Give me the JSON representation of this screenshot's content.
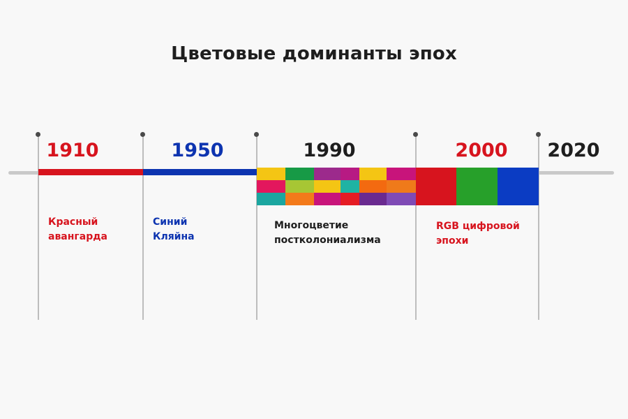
{
  "title": "Цветовые доминанты эпох",
  "colors": {
    "red": "#d7141e",
    "blue": "#0d34b0",
    "dark": "#1e1e1e",
    "green": "#27a02a",
    "rgb_blue": "#0b3cc3"
  },
  "periods": [
    {
      "year": "1910",
      "year_color": "#d7141e",
      "label": "Красный\nавангарда",
      "label_color": "#d7141e"
    },
    {
      "year": "1950",
      "year_color": "#0d34b0",
      "label": "Синий\nКляйна",
      "label_color": "#0d34b0"
    },
    {
      "year": "1990",
      "year_color": "#1e1e1e",
      "label": "Многоцветие\nпостколониализма",
      "label_color": "#1e1e1e"
    },
    {
      "year": "2000",
      "year_color": "#d7141e",
      "label": "RGB цифровой\nэпохи",
      "label_color": "#d7141e"
    },
    {
      "year": "2020",
      "year_color": "#1e1e1e"
    }
  ],
  "mosaic_colors": [
    [
      "#f4c514",
      "#179a46",
      "#9c2a8c",
      "#b71a83",
      "#f4c514",
      "#c8147b"
    ],
    [
      "#e3175d",
      "#a7c634",
      "#f4c514",
      "#1fb3a3",
      "#f36a10",
      "#ef7a1a"
    ],
    [
      "#1ba6a0",
      "#f37a1a",
      "#c8147b",
      "#e51c24",
      "#6a2a90",
      "#7f4bb5"
    ]
  ],
  "rgb_colors": [
    "#d7141e",
    "#27a02a",
    "#0b3cc3"
  ]
}
